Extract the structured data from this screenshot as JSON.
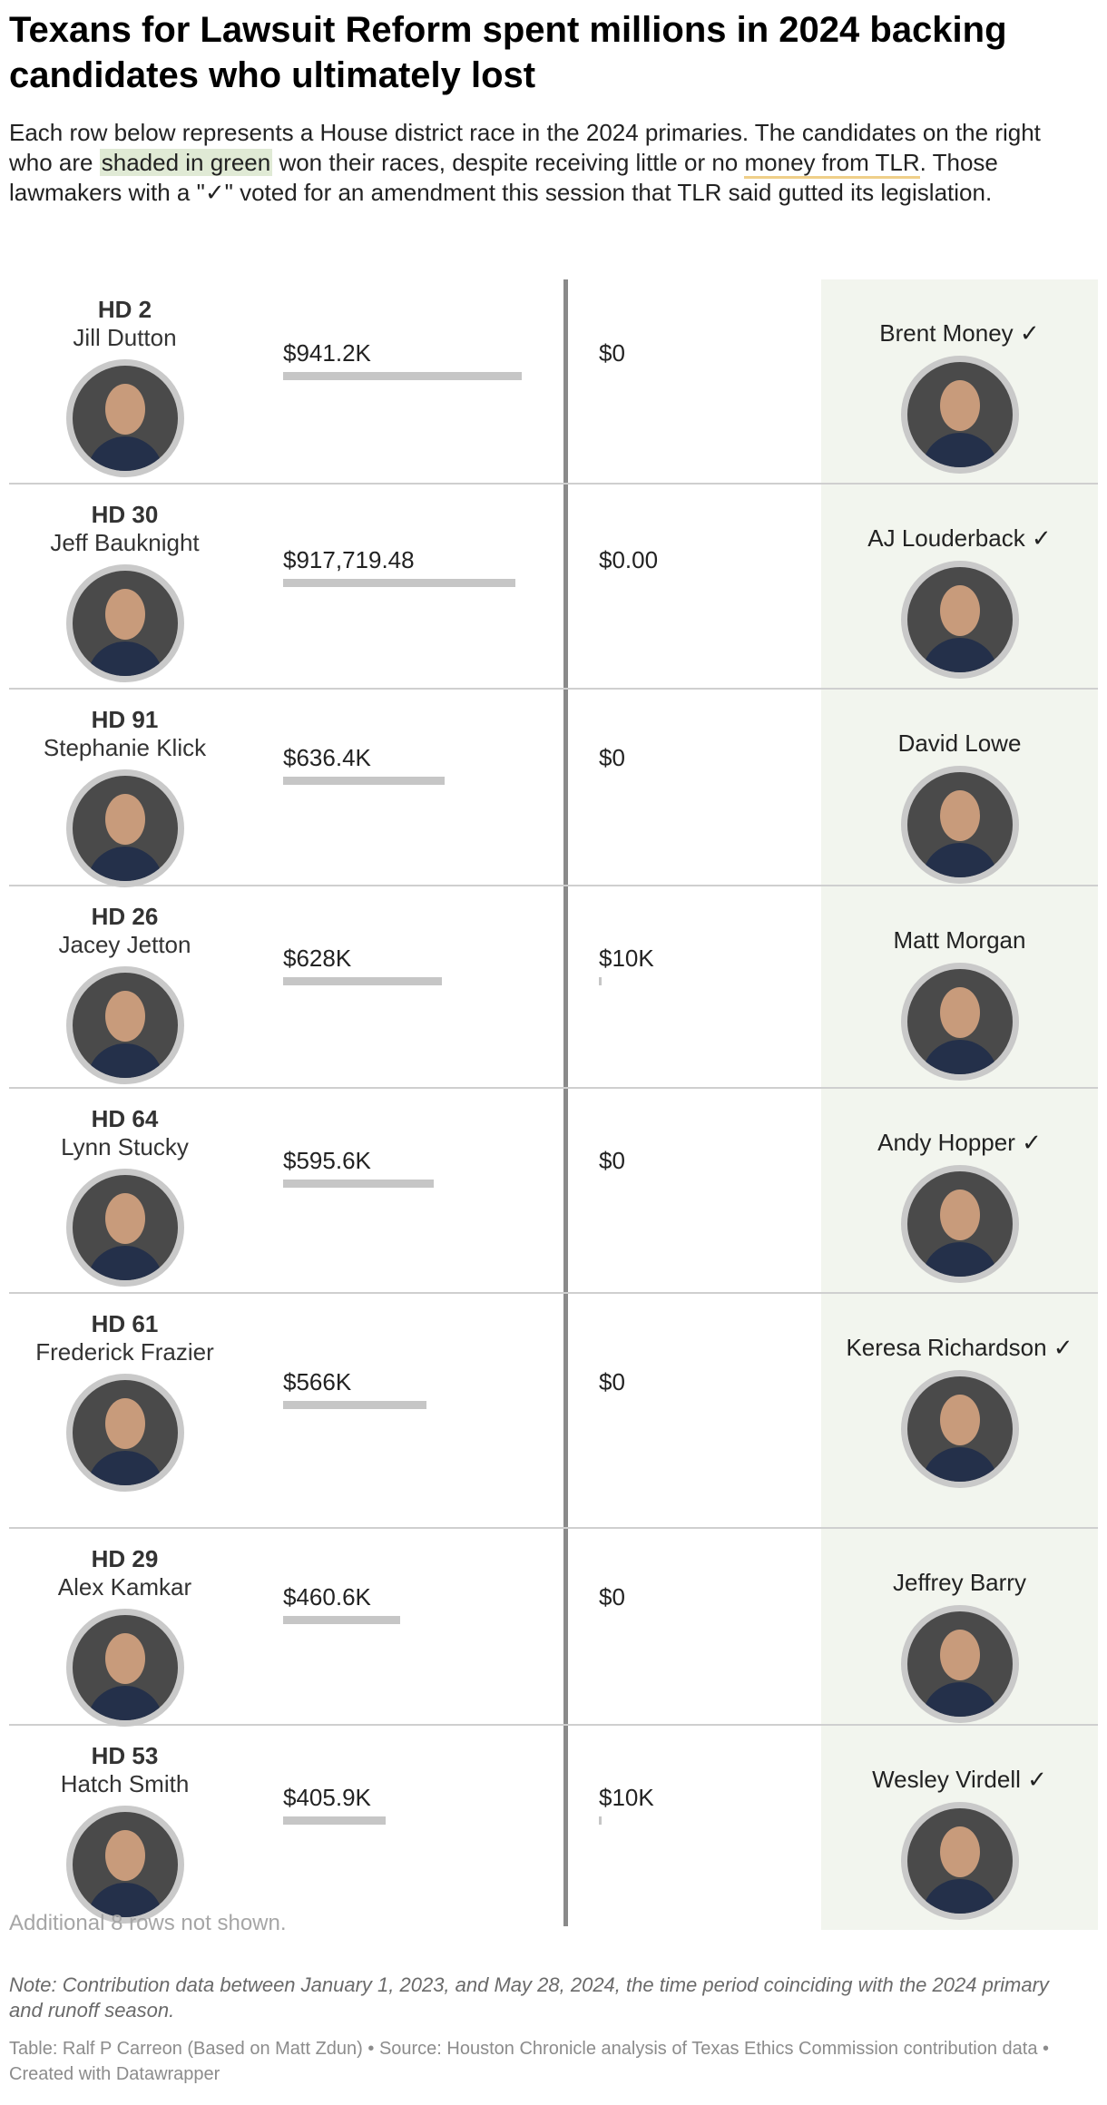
{
  "title": "Texans for Lawsuit Reform spent millions in 2024 backing candidates who ultimately lost",
  "description": {
    "part1": "Each row below represents a House district race in the 2024 primaries. The candidates on the right who are ",
    "green_phrase": "shaded in green",
    "part2": " won their races, despite receiving little or no ",
    "money_phrase": "money from TLR",
    "part3": ". Those lawmakers with a \"✓\" voted for an amendment this session that TLR said gutted its legislation."
  },
  "colors": {
    "winner_shade": "#f2f5ee",
    "bar": "#c6c6c6",
    "divider": "#8a8a8a",
    "highlight_green": "#e0ead5",
    "highlight_money": "#efcf89"
  },
  "chart_data": {
    "type": "table",
    "max_value": 941200,
    "rows": [
      {
        "district": "HD 2",
        "incumbent": "Jill Dutton",
        "tlr_label": "$941.2K",
        "tlr_value": 941200,
        "opp_label": "$0",
        "opp_value": 0,
        "opponent": "Brent Money ✓",
        "opponent_won": true
      },
      {
        "district": "HD 30",
        "incumbent": "Jeff Bauknight",
        "tlr_label": "$917,719.48",
        "tlr_value": 917719.48,
        "opp_label": "$0.00",
        "opp_value": 0,
        "opponent": "AJ Louderback ✓",
        "opponent_won": true
      },
      {
        "district": "HD 91",
        "incumbent": "Stephanie Klick",
        "tlr_label": "$636.4K",
        "tlr_value": 636400,
        "opp_label": "$0",
        "opp_value": 0,
        "opponent": "David Lowe",
        "opponent_won": true
      },
      {
        "district": "HD 26",
        "incumbent": "Jacey Jetton",
        "tlr_label": "$628K",
        "tlr_value": 628000,
        "opp_label": "$10K",
        "opp_value": 10000,
        "opponent": "Matt Morgan",
        "opponent_won": true
      },
      {
        "district": "HD 64",
        "incumbent": "Lynn Stucky",
        "tlr_label": "$595.6K",
        "tlr_value": 595600,
        "opp_label": "$0",
        "opp_value": 0,
        "opponent": "Andy Hopper ✓",
        "opponent_won": true
      },
      {
        "district": "HD 61",
        "incumbent": "Frederick Frazier",
        "tlr_label": "$566K",
        "tlr_value": 566000,
        "opp_label": "$0",
        "opp_value": 0,
        "opponent": "Keresa Richardson ✓",
        "opponent_won": true
      },
      {
        "district": "HD 29",
        "incumbent": "Alex Kamkar",
        "tlr_label": "$460.6K",
        "tlr_value": 460600,
        "opp_label": "$0",
        "opp_value": 0,
        "opponent": "Jeffrey Barry",
        "opponent_won": true
      },
      {
        "district": "HD 53",
        "incumbent": "Hatch Smith",
        "tlr_label": "$405.9K",
        "tlr_value": 405900,
        "opp_label": "$10K",
        "opp_value": 10000,
        "opponent": "Wesley Virdell ✓",
        "opponent_won": true
      }
    ]
  },
  "more_rows": "Additional 8 rows not shown.",
  "note": "Note: Contribution data between January 1, 2023, and May 28, 2024, the time period coinciding with the 2024 primary and runoff season.",
  "credit": "Table: Ralf P Carreon (Based on Matt Zdun) • Source: Houston Chronicle analysis of Texas Ethics Commission contribution data • Created with Datawrapper"
}
